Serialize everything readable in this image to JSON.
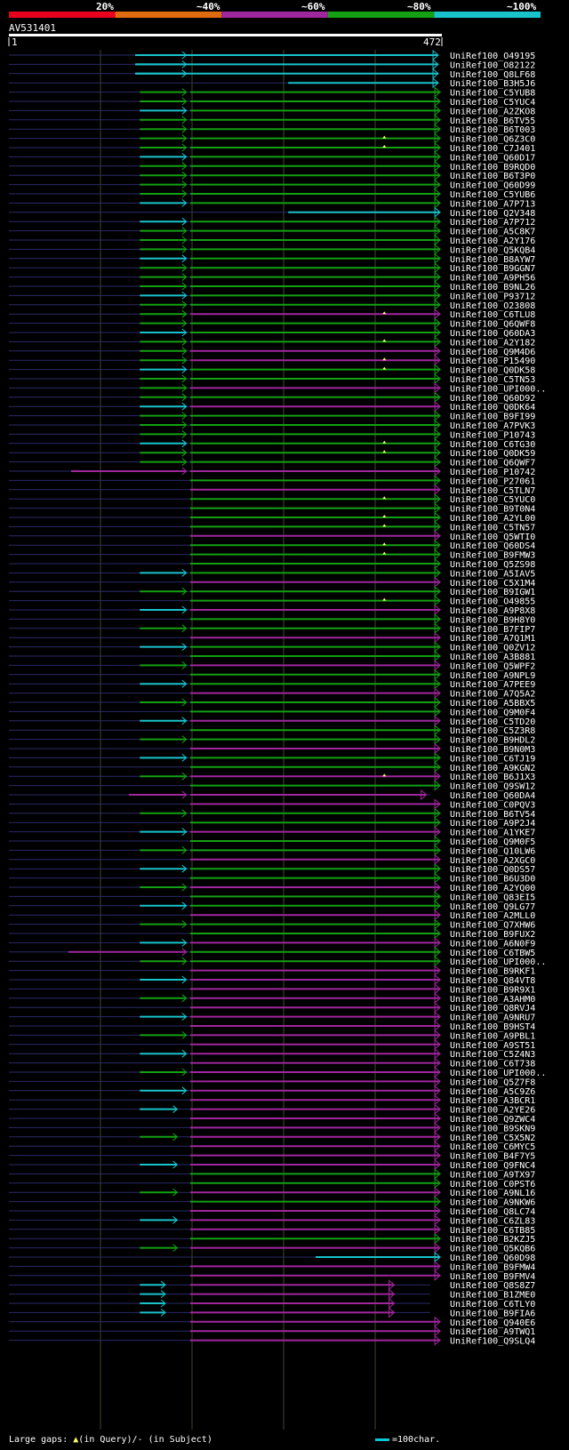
{
  "colors": {
    "bin1": "#e8001e",
    "bin2": "#e06a0e",
    "bin3": "#a0269e",
    "bin4": "#13a013",
    "bin5": "#19c3cc",
    "gridline": "#3a4a2a",
    "queryLine": "#2a2a6a",
    "gapMarker": "#ffff66"
  },
  "scale_labels": [
    "20%",
    "~40%",
    "~60%",
    "~80%",
    "~100%"
  ],
  "query": {
    "id": "AV531401",
    "start": "1",
    "end": "472"
  },
  "footer": {
    "gaps_label": "Large gaps:",
    "gap_query": "(in Query)/",
    "gap_subject_mark": "-",
    "gap_subject": "(in Subject)",
    "legend": "=100char."
  },
  "hits": [
    "UniRef100_O49195",
    "UniRef100_O82122",
    "UniRef100_Q8LF68",
    "UniRef100_B3H5J6",
    "UniRef100_C5YUB8",
    "UniRef100_C5YUC4",
    "UniRef100_A2ZKO8",
    "UniRef100_B6TV55",
    "UniRef100_B6T003",
    "UniRef100_Q6Z3C0",
    "UniRef100_C7J401",
    "UniRef100_Q60D17",
    "UniRef100_B9RQD0",
    "UniRef100_B6T3P0",
    "UniRef100_Q60D99",
    "UniRef100_C5YUB6",
    "UniRef100_A7P713",
    "UniRef100_Q2V348",
    "UniRef100_A7P712",
    "UniRef100_A5C8K7",
    "UniRef100_A2Y176",
    "UniRef100_Q5KQB4",
    "UniRef100_B8AYW7",
    "UniRef100_B9GGN7",
    "UniRef100_A9PH56",
    "UniRef100_B9NL26",
    "UniRef100_P93712",
    "UniRef100_O23808",
    "UniRef100_C6TLU8",
    "UniRef100_Q6QWF8",
    "UniRef100_Q60DA3",
    "UniRef100_A2Y182",
    "UniRef100_Q9M4D6",
    "UniRef100_P15490",
    "UniRef100_Q0DK58",
    "UniRef100_C5TN53",
    "UniRef100_UPI000..",
    "UniRef100_Q60D92",
    "UniRef100_Q0DK64",
    "UniRef100_B9FI99",
    "UniRef100_A7PVK3",
    "UniRef100_P10743",
    "UniRef100_C6TG30",
    "UniRef100_Q0DK59",
    "UniRef100_Q6QWF7",
    "UniRef100_P10742",
    "UniRef100_P27061",
    "UniRef100_C5TLN7",
    "UniRef100_C5YUC0",
    "UniRef100_B9T0N4",
    "UniRef100_A2YL00",
    "UniRef100_C5TN57",
    "UniRef100_Q5WTI0",
    "UniRef100_Q60DS4",
    "UniRef100_B9FMW3",
    "UniRef100_Q5ZS98",
    "UniRef100_A5IAV5",
    "UniRef100_C5X1M4",
    "UniRef100_B9IGW1",
    "UniRef100_O49855",
    "UniRef100_A9P8X8",
    "UniRef100_B9H8Y0",
    "UniRef100_B7FIP7",
    "UniRef100_A7Q1M1",
    "UniRef100_Q0ZV12",
    "UniRef100_A3B881",
    "UniRef100_Q5WPF2",
    "UniRef100_A9NPL9",
    "UniRef100_A7PEE9",
    "UniRef100_A7Q5A2",
    "UniRef100_A5BBX5",
    "UniRef100_Q9M0F4",
    "UniRef100_C5TD20",
    "UniRef100_C5Z3R8",
    "UniRef100_B9HDL2",
    "UniRef100_B9N0M3",
    "UniRef100_C6TJ19",
    "UniRef100_A9KGN2",
    "UniRef100_B6J1X3",
    "UniRef100_Q9SW12",
    "UniRef100_Q60DA4",
    "UniRef100_C0PQV3",
    "UniRef100_B6TV54",
    "UniRef100_A9P2J4",
    "UniRef100_A1YKE7",
    "UniRef100_Q9M0F5",
    "UniRef100_Q10LW6",
    "UniRef100_A2XGC0",
    "UniRef100_Q0DS57",
    "UniRef100_B6U3D0",
    "UniRef100_A2YQ00",
    "UniRef100_Q83EI5",
    "UniRef100_Q9LG77",
    "UniRef100_A2MLL0",
    "UniRef100_Q7XHW6",
    "UniRef100_B9FUX2",
    "UniRef100_A6N0F9",
    "UniRef100_C6TBW5",
    "UniRef100_UPI000..",
    "UniRef100_B9RKF1",
    "UniRef100_Q84VT8",
    "UniRef100_B9R9X1",
    "UniRef100_A3AHM0",
    "UniRef100_Q8RVJ4",
    "UniRef100_A9NRU7",
    "UniRef100_B9HST4",
    "UniRef100_A9PBL1",
    "UniRef100_A9ST51",
    "UniRef100_C5Z4N3",
    "UniRef100_C6T738",
    "UniRef100_UPI000..",
    "UniRef100_Q5Z7F8",
    "UniRef100_A5C9Z6",
    "UniRef100_A3BCR1",
    "UniRef100_A2YE26",
    "UniRef100_Q9ZWC4",
    "UniRef100_B9SKN9",
    "UniRef100_C5X5N2",
    "UniRef100_C6MYC5",
    "UniRef100_B4F7Y5",
    "UniRef100_Q9FNC4",
    "UniRef100_A9TX97",
    "UniRef100_C0PST6",
    "UniRef100_A9NL16",
    "UniRef100_A9NKW6",
    "UniRef100_Q8LC74",
    "UniRef100_C6ZL83",
    "UniRef100_C6TB85",
    "UniRef100_B2KZJ5",
    "UniRef100_Q5KQB6",
    "UniRef100_Q60D98",
    "UniRef100_B9FMW4",
    "UniRef100_B9FMV4",
    "UniRef100_Q8S8Z7",
    "UniRef100_B1ZME0",
    "UniRef100_C6TLY0",
    "UniRef100_B9FIA6",
    "UniRef100_Q940E6",
    "UniRef100_A9TWQ1",
    "UniRef100_Q9SLQ4"
  ]
}
